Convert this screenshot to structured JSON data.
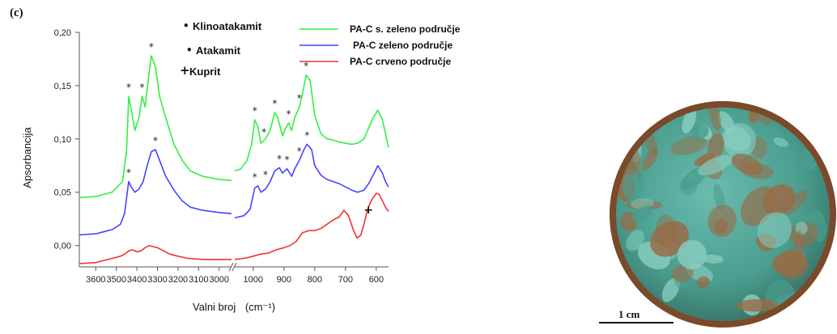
{
  "panel_label": "(c)",
  "chart_data": {
    "type": "line",
    "xlabel": "Valni broj",
    "xlabel_unit": "(cm⁻¹)",
    "ylabel": "Apsorbancija",
    "ylim": [
      -0.02,
      0.2
    ],
    "yticks": [
      "0,00",
      "0,05",
      "0,10",
      "0,15",
      "0,20"
    ],
    "ytick_values": [
      0.0,
      0.05,
      0.1,
      0.15,
      0.2
    ],
    "axis_break": true,
    "xsegments": [
      {
        "from": 3680,
        "to": 2940,
        "ticks": [
          3600,
          3500,
          3400,
          3300,
          3200,
          3100,
          3000
        ]
      },
      {
        "from": 1060,
        "to": 560,
        "ticks": [
          1000,
          900,
          800,
          700,
          600
        ]
      }
    ],
    "xtick_labels": [
      "3600",
      "3500",
      "3400",
      "3300",
      "3200",
      "3100",
      "3000",
      "1000",
      "900",
      "800",
      "700",
      "600"
    ],
    "series": [
      {
        "name": "PA-C s. zeleno područje",
        "color": "#33ee44",
        "segments": [
          [
            [
              3680,
              0.045
            ],
            [
              3600,
              0.046
            ],
            [
              3520,
              0.05
            ],
            [
              3470,
              0.06
            ],
            [
              3450,
              0.09
            ],
            [
              3440,
              0.14
            ],
            [
              3430,
              0.13
            ],
            [
              3410,
              0.108
            ],
            [
              3390,
              0.12
            ],
            [
              3375,
              0.14
            ],
            [
              3360,
              0.13
            ],
            [
              3345,
              0.155
            ],
            [
              3330,
              0.178
            ],
            [
              3310,
              0.168
            ],
            [
              3290,
              0.14
            ],
            [
              3260,
              0.12
            ],
            [
              3220,
              0.095
            ],
            [
              3180,
              0.08
            ],
            [
              3140,
              0.07
            ],
            [
              3080,
              0.065
            ],
            [
              3000,
              0.062
            ],
            [
              2940,
              0.061
            ]
          ],
          [
            [
              1060,
              0.07
            ],
            [
              1040,
              0.072
            ],
            [
              1020,
              0.08
            ],
            [
              1005,
              0.095
            ],
            [
              995,
              0.118
            ],
            [
              985,
              0.112
            ],
            [
              975,
              0.096
            ],
            [
              960,
              0.1
            ],
            [
              945,
              0.108
            ],
            [
              930,
              0.125
            ],
            [
              920,
              0.12
            ],
            [
              905,
              0.103
            ],
            [
              895,
              0.11
            ],
            [
              885,
              0.115
            ],
            [
              875,
              0.108
            ],
            [
              865,
              0.12
            ],
            [
              850,
              0.13
            ],
            [
              840,
              0.142
            ],
            [
              828,
              0.16
            ],
            [
              815,
              0.155
            ],
            [
              800,
              0.122
            ],
            [
              780,
              0.105
            ],
            [
              760,
              0.1
            ],
            [
              740,
              0.099
            ],
            [
              720,
              0.097
            ],
            [
              700,
              0.096
            ],
            [
              680,
              0.095
            ],
            [
              660,
              0.096
            ],
            [
              640,
              0.1
            ],
            [
              625,
              0.11
            ],
            [
              610,
              0.12
            ],
            [
              595,
              0.127
            ],
            [
              580,
              0.118
            ],
            [
              570,
              0.105
            ],
            [
              560,
              0.092
            ]
          ]
        ]
      },
      {
        "name": "PA-C zeleno područje",
        "color": "#4444ff",
        "segments": [
          [
            [
              3680,
              0.01
            ],
            [
              3600,
              0.011
            ],
            [
              3520,
              0.015
            ],
            [
              3480,
              0.02
            ],
            [
              3460,
              0.03
            ],
            [
              3448,
              0.048
            ],
            [
              3440,
              0.06
            ],
            [
              3428,
              0.055
            ],
            [
              3410,
              0.05
            ],
            [
              3390,
              0.053
            ],
            [
              3370,
              0.06
            ],
            [
              3350,
              0.075
            ],
            [
              3330,
              0.088
            ],
            [
              3310,
              0.09
            ],
            [
              3290,
              0.08
            ],
            [
              3260,
              0.065
            ],
            [
              3220,
              0.052
            ],
            [
              3180,
              0.042
            ],
            [
              3140,
              0.036
            ],
            [
              3080,
              0.033
            ],
            [
              3000,
              0.031
            ],
            [
              2940,
              0.03
            ]
          ],
          [
            [
              1060,
              0.026
            ],
            [
              1030,
              0.028
            ],
            [
              1010,
              0.034
            ],
            [
              995,
              0.054
            ],
            [
              985,
              0.056
            ],
            [
              975,
              0.05
            ],
            [
              960,
              0.053
            ],
            [
              945,
              0.06
            ],
            [
              930,
              0.07
            ],
            [
              915,
              0.073
            ],
            [
              905,
              0.068
            ],
            [
              890,
              0.072
            ],
            [
              875,
              0.065
            ],
            [
              865,
              0.072
            ],
            [
              850,
              0.08
            ],
            [
              835,
              0.09
            ],
            [
              825,
              0.095
            ],
            [
              810,
              0.09
            ],
            [
              800,
              0.075
            ],
            [
              780,
              0.066
            ],
            [
              760,
              0.062
            ],
            [
              740,
              0.06
            ],
            [
              720,
              0.058
            ],
            [
              700,
              0.055
            ],
            [
              680,
              0.052
            ],
            [
              660,
              0.05
            ],
            [
              640,
              0.052
            ],
            [
              625,
              0.058
            ],
            [
              610,
              0.066
            ],
            [
              595,
              0.075
            ],
            [
              580,
              0.068
            ],
            [
              570,
              0.06
            ],
            [
              560,
              0.055
            ]
          ]
        ]
      },
      {
        "name": "PA-C crveno područje",
        "color": "#ee3333",
        "segments": [
          [
            [
              3680,
              -0.017
            ],
            [
              3600,
              -0.016
            ],
            [
              3520,
              -0.012
            ],
            [
              3480,
              -0.01
            ],
            [
              3460,
              -0.008
            ],
            [
              3440,
              -0.005
            ],
            [
              3420,
              -0.004
            ],
            [
              3400,
              -0.006
            ],
            [
              3380,
              -0.005
            ],
            [
              3360,
              -0.002
            ],
            [
              3340,
              0.0
            ],
            [
              3320,
              -0.001
            ],
            [
              3300,
              -0.002
            ],
            [
              3270,
              -0.005
            ],
            [
              3240,
              -0.008
            ],
            [
              3200,
              -0.01
            ],
            [
              3150,
              -0.012
            ],
            [
              3080,
              -0.013
            ],
            [
              3000,
              -0.013
            ],
            [
              2940,
              -0.013
            ]
          ],
          [
            [
              1060,
              -0.013
            ],
            [
              1030,
              -0.012
            ],
            [
              1000,
              -0.01
            ],
            [
              975,
              -0.008
            ],
            [
              950,
              -0.007
            ],
            [
              925,
              -0.004
            ],
            [
              900,
              -0.002
            ],
            [
              880,
              0.0
            ],
            [
              860,
              0.004
            ],
            [
              840,
              0.012
            ],
            [
              820,
              0.014
            ],
            [
              800,
              0.014
            ],
            [
              780,
              0.016
            ],
            [
              760,
              0.02
            ],
            [
              740,
              0.024
            ],
            [
              720,
              0.027
            ],
            [
              705,
              0.033
            ],
            [
              690,
              0.028
            ],
            [
              675,
              0.015
            ],
            [
              662,
              0.007
            ],
            [
              650,
              0.01
            ],
            [
              640,
              0.02
            ],
            [
              630,
              0.032
            ],
            [
              620,
              0.04
            ],
            [
              610,
              0.045
            ],
            [
              600,
              0.049
            ],
            [
              590,
              0.048
            ],
            [
              580,
              0.042
            ],
            [
              570,
              0.036
            ],
            [
              560,
              0.032
            ]
          ]
        ]
      }
    ],
    "markers": {
      "Klinoatakamit": [
        [
          3440,
          0.14
        ],
        [
          3375,
          0.14
        ],
        [
          3330,
          0.178
        ],
        [
          995,
          0.118
        ],
        [
          930,
          0.125
        ],
        [
          885,
          0.115
        ],
        [
          850,
          0.13
        ],
        [
          828,
          0.16
        ]
      ],
      "Atakamit": [
        [
          3440,
          0.06
        ],
        [
          3310,
          0.09
        ],
        [
          965,
          0.098
        ],
        [
          995,
          0.056
        ],
        [
          960,
          0.058
        ],
        [
          915,
          0.073
        ],
        [
          890,
          0.072
        ],
        [
          850,
          0.08
        ],
        [
          825,
          0.095
        ]
      ],
      "Kuprit": [
        [
          630,
          0.036
        ]
      ]
    },
    "marker_legend": [
      {
        "symbol": "•",
        "label": "Klinoatakamit"
      },
      {
        "symbol": "•",
        "label": "Atakamit"
      },
      {
        "symbol": "+",
        "label": "Kuprit"
      }
    ]
  },
  "coin": {
    "colors": {
      "rim": "#7a4a2a",
      "base": "#4a9e8f",
      "patch_light": "#8ccfc2",
      "patch_copper": "#9a6a45"
    }
  },
  "scale_label": "1 cm"
}
